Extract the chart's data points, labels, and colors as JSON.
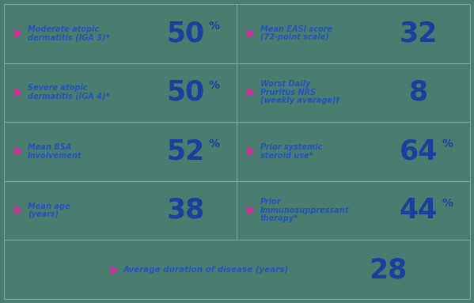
{
  "bg_color": "#4a7c6f",
  "line_color": "#7aab9a",
  "blue_dark": "#1a3f9f",
  "blue_light": "#2255bb",
  "pink": "#cc3399",
  "cells": [
    {
      "row": 0,
      "col": 0,
      "label": "Moderate atopic\ndermatitis (IGA 3)*",
      "value": "50",
      "unit": "%"
    },
    {
      "row": 0,
      "col": 1,
      "label": "Mean EASI score\n(72-point scale)",
      "value": "32",
      "unit": ""
    },
    {
      "row": 1,
      "col": 0,
      "label": "Severe atopic\ndermatitis (IGA 4)*",
      "value": "50",
      "unit": "%"
    },
    {
      "row": 1,
      "col": 1,
      "label": "Worst Daily\nPruritus NRS\n(weekly average)†",
      "value": "8",
      "unit": ""
    },
    {
      "row": 2,
      "col": 0,
      "label": "Mean BSA\nInvolvement",
      "value": "52",
      "unit": "%"
    },
    {
      "row": 2,
      "col": 1,
      "label": "Prior systemic\nsteroid use*",
      "value": "64",
      "unit": "%"
    },
    {
      "row": 3,
      "col": 0,
      "label": "Mean age\n(years)",
      "value": "38",
      "unit": ""
    },
    {
      "row": 3,
      "col": 1,
      "label": "Prior\nImmunosuppressant\ntherapy*",
      "value": "44",
      "unit": "%"
    }
  ],
  "bottom_label": "Average duration of disease (years)",
  "bottom_value": "28"
}
